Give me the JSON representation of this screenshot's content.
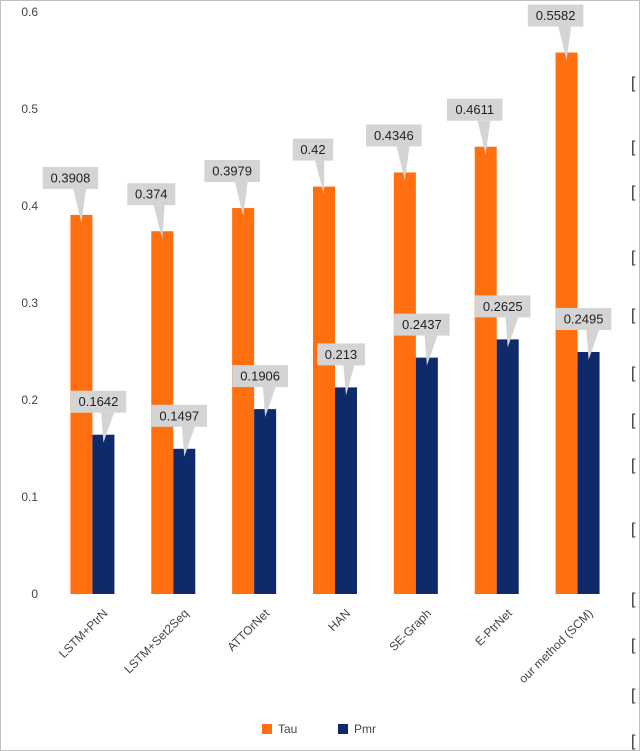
{
  "chart_data": {
    "type": "bar",
    "title": "",
    "xlabel": "",
    "ylabel": "",
    "ylim": [
      0,
      0.6
    ],
    "yticks": [
      "0",
      "0.1",
      "0.2",
      "0.3",
      "0.4",
      "0.5",
      "0.6"
    ],
    "categories": [
      "LSTM+PtrN",
      "LSTM+Set2Seq",
      "ATTOrNet",
      "HAN",
      "SE-Graph",
      "E-PtrNet",
      "our method (SCM)"
    ],
    "series": [
      {
        "name": "Tau",
        "color": "#ff6f0f",
        "values": [
          0.3908,
          0.374,
          0.3979,
          0.42,
          0.4346,
          0.4611,
          0.5582
        ],
        "labels": [
          "0.3908",
          "0.374",
          "0.3979",
          "0.42",
          "0.4346",
          "0.4611",
          "0.5582"
        ]
      },
      {
        "name": "Pmr",
        "color": "#0f2a6b",
        "values": [
          0.1642,
          0.1497,
          0.1906,
          0.213,
          0.2437,
          0.2625,
          0.2495
        ],
        "labels": [
          "0.1642",
          "0.1497",
          "0.1906",
          "0.213",
          "0.2437",
          "0.2625",
          "0.2495"
        ]
      }
    ],
    "grid": false,
    "legend_position": "bottom",
    "label_callout_color": "#d4d4d4"
  },
  "right_edge_brackets": [
    "[",
    "[",
    "[",
    "[",
    "[",
    "[",
    "[",
    "[",
    "[",
    "[",
    "[",
    "[",
    "["
  ]
}
